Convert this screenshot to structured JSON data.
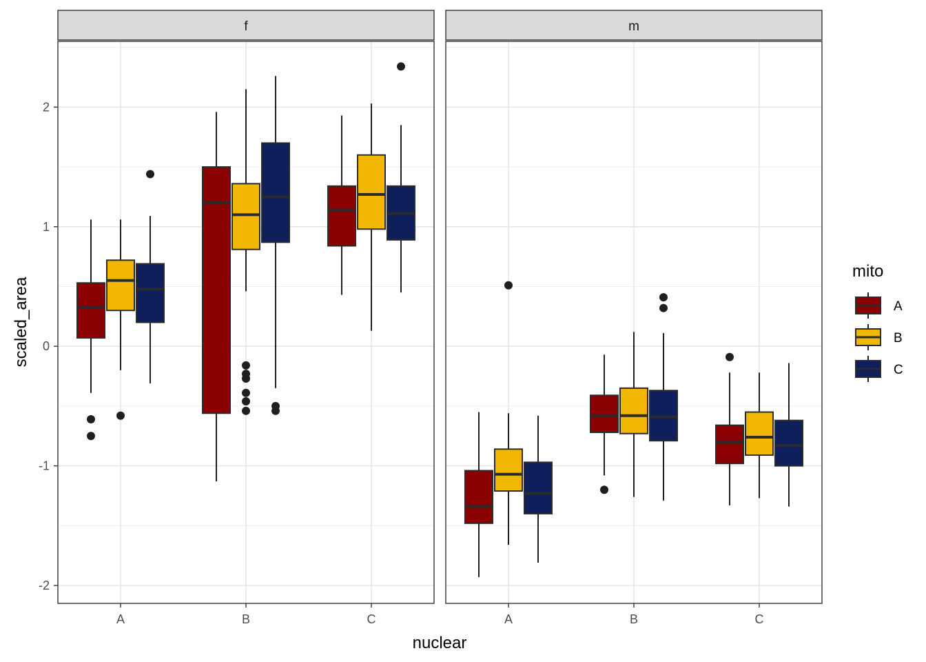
{
  "chart_data": {
    "type": "boxplot",
    "xlabel": "nuclear",
    "ylabel": "scaled_area",
    "ylim": [
      -2.15,
      2.55
    ],
    "yticks": [
      -2,
      -1,
      0,
      1,
      2
    ],
    "categories": [
      "A",
      "B",
      "C"
    ],
    "legend": {
      "title": "mito",
      "position": "right",
      "entries": [
        {
          "label": "A",
          "color": "#8B0000"
        },
        {
          "label": "B",
          "color": "#F2B705"
        },
        {
          "label": "C",
          "color": "#0F1F5C"
        }
      ]
    },
    "facets": [
      {
        "label": "f",
        "groups": [
          {
            "nuclear": "A",
            "mito": "A",
            "lower": -0.39,
            "q1": 0.07,
            "median": 0.33,
            "q3": 0.53,
            "upper": 1.06,
            "outliers": [
              -0.61,
              -0.75
            ]
          },
          {
            "nuclear": "A",
            "mito": "B",
            "lower": -0.2,
            "q1": 0.3,
            "median": 0.55,
            "q3": 0.72,
            "upper": 1.06,
            "outliers": [
              -0.58
            ]
          },
          {
            "nuclear": "A",
            "mito": "C",
            "lower": -0.31,
            "q1": 0.2,
            "median": 0.48,
            "q3": 0.69,
            "upper": 1.09,
            "outliers": [
              1.44
            ]
          },
          {
            "nuclear": "B",
            "mito": "A",
            "lower": -1.13,
            "q1": -0.56,
            "median": 1.2,
            "q3": 1.5,
            "upper": 1.96,
            "outliers": []
          },
          {
            "nuclear": "B",
            "mito": "B",
            "lower": 0.46,
            "q1": 0.81,
            "median": 1.1,
            "q3": 1.36,
            "upper": 2.15,
            "outliers": [
              -0.16,
              -0.23,
              -0.27,
              -0.39,
              -0.46,
              -0.54
            ]
          },
          {
            "nuclear": "B",
            "mito": "C",
            "lower": -0.35,
            "q1": 0.87,
            "median": 1.25,
            "q3": 1.7,
            "upper": 2.26,
            "outliers": [
              -0.5,
              -0.54
            ]
          },
          {
            "nuclear": "C",
            "mito": "A",
            "lower": 0.43,
            "q1": 0.84,
            "median": 1.14,
            "q3": 1.34,
            "upper": 1.93,
            "outliers": []
          },
          {
            "nuclear": "C",
            "mito": "B",
            "lower": 0.13,
            "q1": 0.98,
            "median": 1.27,
            "q3": 1.6,
            "upper": 2.03,
            "outliers": []
          },
          {
            "nuclear": "C",
            "mito": "C",
            "lower": 0.45,
            "q1": 0.89,
            "median": 1.11,
            "q3": 1.34,
            "upper": 1.85,
            "outliers": [
              2.34
            ]
          }
        ]
      },
      {
        "label": "m",
        "groups": [
          {
            "nuclear": "A",
            "mito": "A",
            "lower": -1.93,
            "q1": -1.48,
            "median": -1.34,
            "q3": -1.04,
            "upper": -0.55,
            "outliers": []
          },
          {
            "nuclear": "A",
            "mito": "B",
            "lower": -1.66,
            "q1": -1.21,
            "median": -1.07,
            "q3": -0.86,
            "upper": -0.56,
            "outliers": [
              0.51
            ]
          },
          {
            "nuclear": "A",
            "mito": "C",
            "lower": -1.81,
            "q1": -1.4,
            "median": -1.23,
            "q3": -0.97,
            "upper": -0.58,
            "outliers": []
          },
          {
            "nuclear": "B",
            "mito": "A",
            "lower": -1.08,
            "q1": -0.72,
            "median": -0.58,
            "q3": -0.41,
            "upper": -0.07,
            "outliers": [
              -1.2
            ]
          },
          {
            "nuclear": "B",
            "mito": "B",
            "lower": -1.26,
            "q1": -0.73,
            "median": -0.58,
            "q3": -0.35,
            "upper": 0.12,
            "outliers": []
          },
          {
            "nuclear": "B",
            "mito": "C",
            "lower": -1.29,
            "q1": -0.79,
            "median": -0.59,
            "q3": -0.37,
            "upper": 0.11,
            "outliers": [
              0.41,
              0.32
            ]
          },
          {
            "nuclear": "C",
            "mito": "A",
            "lower": -1.33,
            "q1": -0.98,
            "median": -0.8,
            "q3": -0.66,
            "upper": -0.22,
            "outliers": [
              -0.09
            ]
          },
          {
            "nuclear": "C",
            "mito": "B",
            "lower": -1.27,
            "q1": -0.91,
            "median": -0.76,
            "q3": -0.55,
            "upper": -0.22,
            "outliers": []
          },
          {
            "nuclear": "C",
            "mito": "C",
            "lower": -1.34,
            "q1": -1.0,
            "median": -0.83,
            "q3": -0.62,
            "upper": -0.14,
            "outliers": []
          }
        ]
      }
    ]
  }
}
